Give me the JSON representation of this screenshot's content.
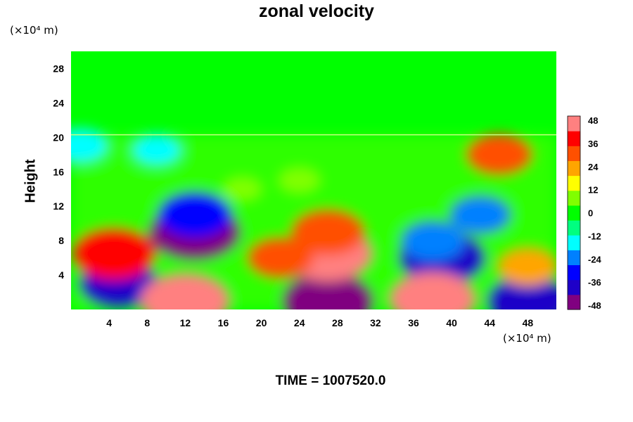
{
  "title": "zonal velocity",
  "footer_text": "TIME = 1007520.0",
  "chart_data": {
    "type": "heatmap",
    "title": "zonal velocity",
    "xlabel": "",
    "ylabel": "Height",
    "x_unit_label": "(×10⁴ m)",
    "y_unit_label": "(×10⁴ m)",
    "xlim": [
      0,
      51
    ],
    "ylim": [
      0,
      30
    ],
    "x_ticks": [
      4,
      8,
      12,
      16,
      20,
      24,
      28,
      32,
      36,
      40,
      44,
      48
    ],
    "y_ticks": [
      4,
      8,
      12,
      16,
      20,
      24,
      28
    ],
    "colorbar": {
      "min": -48,
      "max": 48,
      "tick_labels": [
        48,
        36,
        24,
        12,
        0,
        -12,
        -24,
        -36,
        -48
      ],
      "colors": [
        "#800080",
        "#1e00c8",
        "#0000ff",
        "#0080ff",
        "#00ffff",
        "#00ff80",
        "#00ff00",
        "#80ff00",
        "#ffff00",
        "#ffa500",
        "#ff5000",
        "#ff0000",
        "#ff8080"
      ]
    },
    "background_value": 0,
    "fields": [
      {
        "x": 13,
        "y": 9,
        "value": -48
      },
      {
        "x": 13,
        "y": 11,
        "value": -34
      },
      {
        "x": 27,
        "y": 1,
        "value": -48
      },
      {
        "x": 39,
        "y": 6,
        "value": -44
      },
      {
        "x": 38,
        "y": 8,
        "value": -26
      },
      {
        "x": 43,
        "y": 11,
        "value": -24
      },
      {
        "x": 5,
        "y": 3,
        "value": -38
      },
      {
        "x": 1,
        "y": 19,
        "value": -20
      },
      {
        "x": 9,
        "y": 18.5,
        "value": -16
      },
      {
        "x": 48,
        "y": 1,
        "value": -40
      },
      {
        "x": 27,
        "y": 6.5,
        "value": 46
      },
      {
        "x": 27,
        "y": 9,
        "value": 34
      },
      {
        "x": 22,
        "y": 6,
        "value": 28
      },
      {
        "x": 12,
        "y": 1,
        "value": 46
      },
      {
        "x": 4.5,
        "y": 6.5,
        "value": 42
      },
      {
        "x": 38,
        "y": 1.2,
        "value": 44
      },
      {
        "x": 45,
        "y": 18,
        "value": 28
      },
      {
        "x": 48,
        "y": 5,
        "value": 24
      },
      {
        "x": 24,
        "y": 15,
        "value": 10
      },
      {
        "x": 18,
        "y": 14,
        "value": 8
      }
    ]
  }
}
